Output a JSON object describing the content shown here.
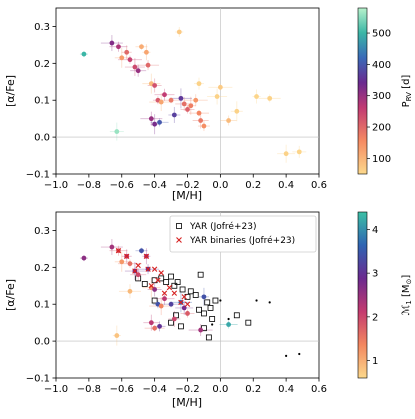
{
  "chart_data": [
    {
      "type": "scatter",
      "xlabel": "[M/H]",
      "ylabel": "[α/Fe]",
      "xlim": [
        -1.0,
        0.6
      ],
      "ylim": [
        -0.1,
        0.35
      ],
      "xticks": [
        "−1.0",
        "−0.8",
        "−0.6",
        "−0.4",
        "−0.2",
        "0.0",
        "0.2",
        "0.4",
        "0.6"
      ],
      "yticks": [
        "−0.1",
        "0.0",
        "0.1",
        "0.2",
        "0.3"
      ],
      "reference_lines": {
        "x": 0.0,
        "y": 0.0
      },
      "color_by": "P_RV [d]",
      "colorbar": {
        "label": "P$_{RV}$ [d]",
        "range": [
          50,
          580
        ],
        "ticks": [
          100,
          200,
          300,
          400,
          500
        ],
        "tick_labels": [
          "100",
          "200",
          "300",
          "400",
          "500"
        ],
        "colormap": "magma-like (yellow → red → purple → blue → green)"
      },
      "points": [
        {
          "x": -0.83,
          "y": 0.225,
          "c": 500
        },
        {
          "x": -0.66,
          "y": 0.255,
          "c": 320
        },
        {
          "x": -0.62,
          "y": 0.245,
          "c": 280
        },
        {
          "x": -0.6,
          "y": 0.215,
          "c": 130
        },
        {
          "x": -0.57,
          "y": 0.23,
          "c": 200
        },
        {
          "x": -0.55,
          "y": 0.21,
          "c": 250
        },
        {
          "x": -0.52,
          "y": 0.19,
          "c": 240
        },
        {
          "x": -0.5,
          "y": 0.18,
          "c": 300
        },
        {
          "x": -0.48,
          "y": 0.245,
          "c": 110
        },
        {
          "x": -0.45,
          "y": 0.23,
          "c": 120
        },
        {
          "x": -0.44,
          "y": 0.195,
          "c": 200
        },
        {
          "x": -0.42,
          "y": 0.145,
          "c": 90
        },
        {
          "x": -0.4,
          "y": 0.14,
          "c": 230
        },
        {
          "x": -0.38,
          "y": 0.1,
          "c": 220
        },
        {
          "x": -0.36,
          "y": 0.095,
          "c": 120
        },
        {
          "x": -0.34,
          "y": 0.115,
          "c": 260
        },
        {
          "x": -0.3,
          "y": 0.1,
          "c": 180
        },
        {
          "x": -0.28,
          "y": 0.06,
          "c": 370
        },
        {
          "x": -0.25,
          "y": 0.285,
          "c": 70
        },
        {
          "x": -0.24,
          "y": 0.105,
          "c": 360
        },
        {
          "x": -0.22,
          "y": 0.09,
          "c": 190
        },
        {
          "x": -0.2,
          "y": 0.075,
          "c": 210
        },
        {
          "x": -0.18,
          "y": 0.085,
          "c": 170
        },
        {
          "x": -0.15,
          "y": 0.1,
          "c": 140
        },
        {
          "x": -0.13,
          "y": 0.065,
          "c": 160
        },
        {
          "x": -0.12,
          "y": 0.045,
          "c": 180
        },
        {
          "x": -0.1,
          "y": 0.03,
          "c": 150
        },
        {
          "x": -0.4,
          "y": 0.035,
          "c": 330
        },
        {
          "x": -0.42,
          "y": 0.05,
          "c": 300
        },
        {
          "x": -0.37,
          "y": 0.04,
          "c": 400
        },
        {
          "x": -0.63,
          "y": 0.015,
          "c": 560
        },
        {
          "x": -0.13,
          "y": 0.145,
          "c": 60
        },
        {
          "x": 0.0,
          "y": 0.135,
          "c": 70
        },
        {
          "x": -0.02,
          "y": 0.11,
          "c": 60
        },
        {
          "x": 0.05,
          "y": 0.045,
          "c": 90
        },
        {
          "x": 0.1,
          "y": 0.07,
          "c": 60
        },
        {
          "x": 0.22,
          "y": 0.11,
          "c": 55
        },
        {
          "x": 0.3,
          "y": 0.105,
          "c": 60
        },
        {
          "x": 0.4,
          "y": -0.045,
          "c": 60
        },
        {
          "x": 0.48,
          "y": -0.04,
          "c": 55
        }
      ]
    },
    {
      "type": "scatter",
      "xlabel": "[M/H]",
      "ylabel": "[α/Fe]",
      "xlim": [
        -1.0,
        0.6
      ],
      "ylim": [
        -0.1,
        0.35
      ],
      "xticks": [
        "−1.0",
        "−0.8",
        "−0.6",
        "−0.4",
        "−0.2",
        "0.0",
        "0.2",
        "0.4",
        "0.6"
      ],
      "yticks": [
        "−0.1",
        "0.0",
        "0.1",
        "0.2",
        "0.3"
      ],
      "reference_lines": {
        "x": 0.0,
        "y": 0.0
      },
      "color_by": "M1 [M☉]",
      "colorbar": {
        "label": "$\\mathcal{M}_1$ [M$_\\odot$]",
        "range": [
          0.6,
          4.4
        ],
        "ticks": [
          1,
          2,
          3,
          4
        ],
        "tick_labels": [
          "1",
          "2",
          "3",
          "4"
        ],
        "colormap": "reversed magma-like (blue/teal → purple → red → yellow)"
      },
      "legend": {
        "location": "upper right",
        "entries": [
          "YAR (Jofré+23)",
          "YAR binaries (Jofré+23)"
        ]
      },
      "points": [
        {
          "x": -0.83,
          "y": 0.225,
          "c": 2.6
        },
        {
          "x": -0.66,
          "y": 0.255,
          "c": 2.4
        },
        {
          "x": -0.62,
          "y": 0.245,
          "c": 1.8
        },
        {
          "x": -0.6,
          "y": 0.215,
          "c": 1.2
        },
        {
          "x": -0.57,
          "y": 0.23,
          "c": 2.2
        },
        {
          "x": -0.55,
          "y": 0.21,
          "c": 1.6
        },
        {
          "x": -0.52,
          "y": 0.19,
          "c": 2.8
        },
        {
          "x": -0.5,
          "y": 0.18,
          "c": 2.0
        },
        {
          "x": -0.48,
          "y": 0.245,
          "c": 3.4
        },
        {
          "x": -0.45,
          "y": 0.23,
          "c": 2.4
        },
        {
          "x": -0.44,
          "y": 0.195,
          "c": 3.0
        },
        {
          "x": -0.42,
          "y": 0.145,
          "c": 1.2
        },
        {
          "x": -0.4,
          "y": 0.14,
          "c": 2.6
        },
        {
          "x": -0.38,
          "y": 0.1,
          "c": 3.4
        },
        {
          "x": -0.36,
          "y": 0.095,
          "c": 1.4
        },
        {
          "x": -0.34,
          "y": 0.115,
          "c": 2.2
        },
        {
          "x": -0.3,
          "y": 0.1,
          "c": 3.2
        },
        {
          "x": -0.28,
          "y": 0.06,
          "c": 2.0
        },
        {
          "x": -0.25,
          "y": 0.285,
          "c": 1.1
        },
        {
          "x": -0.24,
          "y": 0.105,
          "c": 3.6
        },
        {
          "x": -0.22,
          "y": 0.09,
          "c": 2.8
        },
        {
          "x": -0.2,
          "y": 0.075,
          "c": 1.8
        },
        {
          "x": -0.1,
          "y": 0.12,
          "c": 3.4
        },
        {
          "x": -0.12,
          "y": 0.03,
          "c": 2.4
        },
        {
          "x": -0.4,
          "y": 0.035,
          "c": 1.6
        },
        {
          "x": -0.42,
          "y": 0.05,
          "c": 2.2
        },
        {
          "x": -0.37,
          "y": 0.04,
          "c": 3.0
        },
        {
          "x": -0.63,
          "y": 0.015,
          "c": 0.8
        },
        {
          "x": -0.55,
          "y": 0.135,
          "c": 0.9
        },
        {
          "x": 0.05,
          "y": 0.045,
          "c": 4.2
        }
      ],
      "yar_points": [
        {
          "x": -0.5,
          "y": 0.17
        },
        {
          "x": -0.46,
          "y": 0.155
        },
        {
          "x": -0.4,
          "y": 0.165
        },
        {
          "x": -0.36,
          "y": 0.17
        },
        {
          "x": -0.33,
          "y": 0.16
        },
        {
          "x": -0.3,
          "y": 0.175
        },
        {
          "x": -0.28,
          "y": 0.15
        },
        {
          "x": -0.26,
          "y": 0.16
        },
        {
          "x": -0.23,
          "y": 0.14
        },
        {
          "x": -0.2,
          "y": 0.12
        },
        {
          "x": -0.18,
          "y": 0.135
        },
        {
          "x": -0.15,
          "y": 0.125
        },
        {
          "x": -0.13,
          "y": 0.085
        },
        {
          "x": -0.1,
          "y": 0.075
        },
        {
          "x": -0.08,
          "y": 0.105
        },
        {
          "x": -0.06,
          "y": 0.09
        },
        {
          "x": -0.05,
          "y": 0.06
        },
        {
          "x": -0.03,
          "y": 0.11
        },
        {
          "x": -0.3,
          "y": 0.05
        },
        {
          "x": -0.27,
          "y": 0.07
        },
        {
          "x": -0.24,
          "y": 0.04
        },
        {
          "x": -0.1,
          "y": 0.035
        },
        {
          "x": -0.07,
          "y": 0.01
        },
        {
          "x": 0.1,
          "y": 0.07
        },
        {
          "x": 0.17,
          "y": 0.05
        },
        {
          "x": -0.12,
          "y": 0.18
        },
        {
          "x": -0.4,
          "y": 0.11
        }
      ],
      "yar_binary_points": [
        {
          "x": -0.62,
          "y": 0.245
        },
        {
          "x": -0.57,
          "y": 0.23
        },
        {
          "x": -0.52,
          "y": 0.19
        },
        {
          "x": -0.5,
          "y": 0.205
        },
        {
          "x": -0.45,
          "y": 0.23
        },
        {
          "x": -0.44,
          "y": 0.195
        },
        {
          "x": -0.4,
          "y": 0.195
        },
        {
          "x": -0.38,
          "y": 0.165
        },
        {
          "x": -0.36,
          "y": 0.185
        },
        {
          "x": -0.34,
          "y": 0.13
        },
        {
          "x": -0.31,
          "y": 0.145
        },
        {
          "x": -0.28,
          "y": 0.13
        },
        {
          "x": -0.24,
          "y": 0.105
        },
        {
          "x": -0.22,
          "y": 0.12
        },
        {
          "x": -0.2,
          "y": 0.1
        },
        {
          "x": -0.42,
          "y": 0.15
        }
      ],
      "small_black_points": [
        {
          "x": 0.0,
          "y": 0.11
        },
        {
          "x": -0.05,
          "y": 0.045
        },
        {
          "x": 0.05,
          "y": 0.06
        },
        {
          "x": 0.22,
          "y": 0.11
        },
        {
          "x": 0.3,
          "y": 0.105
        },
        {
          "x": 0.4,
          "y": -0.04
        },
        {
          "x": 0.48,
          "y": -0.035
        }
      ]
    }
  ]
}
